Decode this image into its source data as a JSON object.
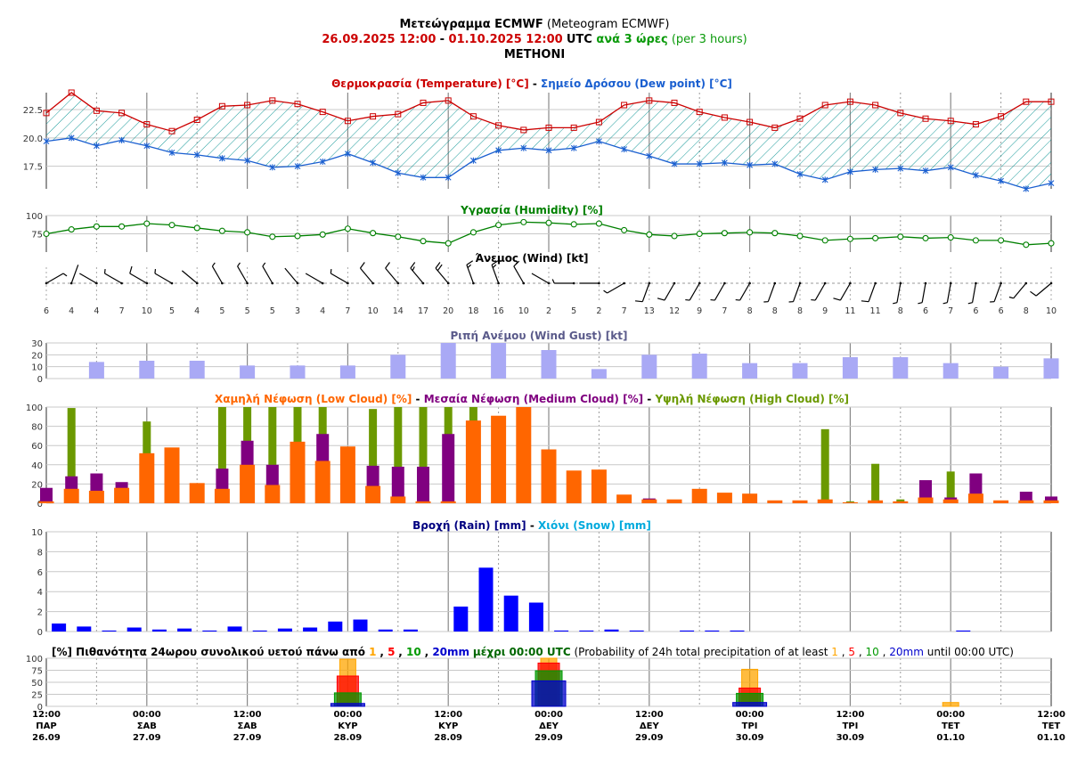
{
  "header": {
    "title_gr": "Μετεώγραμμα ECMWF",
    "title_en": "(Meteogram ECMWF)",
    "range_start": "26.09.2025 12:00",
    "range_sep": " - ",
    "range_end": "01.10.2025 12:00",
    "utc": " UTC ",
    "per_gr": "ανά 3 ώρες",
    "per_en": " (per 3 hours)",
    "location": "METHONI"
  },
  "colors": {
    "temp": "#cc0000",
    "dew": "#1a5fd0",
    "humidity": "#008000",
    "gust": "#a9a9f5",
    "low": "#ff6600",
    "medium": "#800080",
    "high": "#6b9900",
    "rain": "#0000ff",
    "rain_title": "#000080",
    "snow": "#00aadd",
    "prob1": "#ffa500",
    "prob5": "#ff0000",
    "prob10": "#009900",
    "prob20": "#0000cc"
  },
  "time_axis": {
    "labels": [
      {
        "time": "12:00",
        "day": "ΠΑΡ",
        "date": "26.09"
      },
      {
        "time": "00:00",
        "day": "ΣΑΒ",
        "date": "27.09"
      },
      {
        "time": "12:00",
        "day": "ΣΑΒ",
        "date": "27.09"
      },
      {
        "time": "00:00",
        "day": "ΚΥΡ",
        "date": "28.09"
      },
      {
        "time": "12:00",
        "day": "ΚΥΡ",
        "date": "28.09"
      },
      {
        "time": "00:00",
        "day": "ΔΕΥ",
        "date": "29.09"
      },
      {
        "time": "12:00",
        "day": "ΔΕΥ",
        "date": "29.09"
      },
      {
        "time": "00:00",
        "day": "ΤΡΙ",
        "date": "30.09"
      },
      {
        "time": "12:00",
        "day": "ΤΡΙ",
        "date": "30.09"
      },
      {
        "time": "00:00",
        "day": "ΤΕΤ",
        "date": "01.10"
      },
      {
        "time": "12:00",
        "day": "ΤΕΤ",
        "date": "01.10"
      }
    ]
  },
  "chart_data": [
    {
      "type": "line",
      "title_parts": [
        "Θερμοκρασία (Temperature) [°C]",
        " - ",
        "Σημείο Δρόσου (Dew point) [°C]"
      ],
      "y_ticks": [
        "22.5",
        "20.0",
        "17.5"
      ],
      "ylim": [
        15.5,
        24.0
      ],
      "series": [
        {
          "name": "Θερμοκρασία (Temperature) [°C]",
          "values": [
            22.2,
            24.0,
            22.4,
            22.2,
            21.2,
            20.6,
            21.6,
            22.8,
            22.9,
            23.3,
            23.0,
            22.3,
            21.5,
            21.9,
            22.1,
            23.1,
            23.3,
            21.9,
            21.1,
            20.7,
            20.9,
            20.9,
            21.4,
            22.9,
            23.3,
            23.1,
            22.3,
            21.8,
            21.4,
            20.9,
            21.7,
            22.9,
            23.2,
            22.9,
            22.2,
            21.7,
            21.5,
            21.2,
            21.9,
            23.2,
            23.2
          ]
        },
        {
          "name": "Σημείο Δρόσου (Dew point) [°C]",
          "values": [
            19.7,
            20.0,
            19.3,
            19.8,
            19.3,
            18.7,
            18.5,
            18.2,
            18.0,
            17.4,
            17.5,
            17.9,
            18.6,
            17.8,
            16.9,
            16.5,
            16.5,
            18.0,
            18.9,
            19.1,
            18.9,
            19.1,
            19.7,
            19.0,
            18.4,
            17.7,
            17.7,
            17.8,
            17.6,
            17.7,
            16.8,
            16.3,
            17.0,
            17.2,
            17.3,
            17.1,
            17.4,
            16.7,
            16.2,
            15.5,
            16.0
          ]
        }
      ]
    },
    {
      "type": "line",
      "title": "Υγρασία (Humidity) [%]",
      "y_ticks": [
        "100",
        "75"
      ],
      "ylim": [
        50,
        100
      ],
      "series": [
        {
          "name": "Υγρασία (Humidity) [%]",
          "values": [
            75,
            81,
            85,
            85,
            89,
            87,
            83,
            79,
            77,
            71,
            72,
            74,
            82,
            76,
            71,
            65,
            62,
            77,
            87,
            91,
            90,
            88,
            89,
            80,
            74,
            72,
            75,
            76,
            77,
            76,
            72,
            66,
            68,
            69,
            71,
            69,
            70,
            66,
            66,
            60,
            62
          ]
        }
      ]
    },
    {
      "type": "scatter",
      "title": "Άνεμος (Wind) [kt]",
      "speeds": [
        6,
        4,
        4,
        7,
        10,
        5,
        4,
        5,
        5,
        5,
        3,
        4,
        7,
        10,
        14,
        17,
        20,
        18,
        16,
        10,
        2,
        5,
        2,
        7,
        13,
        12,
        9,
        7,
        8,
        8,
        8,
        9,
        11,
        11,
        8,
        6,
        7,
        6,
        6,
        8,
        10
      ],
      "directions_deg": [
        60,
        20,
        300,
        300,
        300,
        300,
        310,
        330,
        330,
        330,
        320,
        300,
        300,
        320,
        320,
        320,
        320,
        340,
        340,
        330,
        300,
        270,
        270,
        240,
        200,
        210,
        210,
        210,
        210,
        200,
        200,
        210,
        210,
        200,
        190,
        190,
        190,
        190,
        200,
        220,
        230
      ]
    },
    {
      "type": "bar",
      "title": "Ριπή Ανέμου (Wind Gust) [kt]",
      "y_ticks": [
        "30",
        "20",
        "10",
        "0"
      ],
      "ylim": [
        0,
        30
      ],
      "series": [
        {
          "name": "Ριπή Ανέμου (Wind Gust) [kt]",
          "values": [
            14,
            15,
            15,
            11,
            11,
            11,
            20,
            30,
            30,
            24,
            8,
            20,
            21,
            13,
            13,
            18,
            18,
            13,
            10,
            17
          ]
        }
      ]
    },
    {
      "type": "bar",
      "title_parts": [
        "Χαμηλή Νέφωση (Low Cloud) [%]",
        " - ",
        "Μεσαία Νέφωση (Medium Cloud) [%]",
        " - ",
        "Υψηλή Νέφωση (High Cloud) [%]"
      ],
      "y_ticks": [
        "100",
        "80",
        "60",
        "40",
        "20",
        "0"
      ],
      "ylim": [
        0,
        100
      ],
      "series": [
        {
          "name": "Χαμηλή Νέφωση (Low Cloud) [%]",
          "values": [
            2,
            15,
            13,
            16,
            52,
            58,
            21,
            15,
            40,
            19,
            64,
            44,
            59,
            18,
            7,
            2,
            2,
            86,
            91,
            100,
            56,
            34,
            35,
            9,
            4,
            4,
            15,
            11,
            10,
            3,
            3,
            4,
            1,
            3,
            2,
            6,
            4,
            10,
            3,
            3,
            3
          ]
        },
        {
          "name": "Μεσαία Νέφωση (Medium Cloud) [%]",
          "values": [
            16,
            28,
            31,
            22,
            0,
            0,
            0,
            36,
            65,
            40,
            0,
            72,
            0,
            39,
            38,
            38,
            72,
            0,
            0,
            0,
            0,
            0,
            0,
            0,
            5,
            0,
            0,
            0,
            0,
            0,
            0,
            0,
            0,
            0,
            0,
            24,
            6,
            31,
            0,
            12,
            7
          ]
        },
        {
          "name": "Υψηλή Νέφωση (High Cloud) [%]",
          "values": [
            0,
            99,
            0,
            0,
            85,
            0,
            0,
            100,
            100,
            100,
            100,
            100,
            0,
            98,
            100,
            100,
            100,
            100,
            0,
            0,
            0,
            0,
            0,
            0,
            0,
            0,
            0,
            0,
            0,
            0,
            0,
            77,
            2,
            41,
            4,
            0,
            33,
            0,
            0,
            0,
            0
          ]
        }
      ]
    },
    {
      "type": "bar",
      "title_parts": [
        "Βροχή (Rain) [mm]",
        " - ",
        "Χιόνι (Snow) [mm]"
      ],
      "y_ticks": [
        "10",
        "8",
        "6",
        "4",
        "2",
        "0"
      ],
      "ylim": [
        0,
        10
      ],
      "series": [
        {
          "name": "Βροχή (Rain) [mm]",
          "values": [
            0.8,
            0.5,
            0.1,
            0.4,
            0.2,
            0.3,
            0.1,
            0.5,
            0.1,
            0.3,
            0.4,
            1.0,
            1.2,
            0.2,
            0.2,
            0,
            2.5,
            6.4,
            3.6,
            2.9,
            0.1,
            0.1,
            0.2,
            0.1,
            0,
            0.1,
            0.1,
            0.1,
            0,
            0,
            0,
            0,
            0,
            0,
            0,
            0,
            0.1,
            0,
            0,
            0
          ]
        },
        {
          "name": "Χιόνι (Snow) [mm]",
          "values": []
        }
      ]
    },
    {
      "type": "bar",
      "title_parts": [
        "[%] Πιθανότητα 24ωρου συνολικού υετού πάνω από ",
        "1",
        ", ",
        "5",
        ", ",
        "10",
        ", ",
        "20mm",
        " μέχρι 00:00 UTC",
        " (Probability of 24h total precipitation of at least ",
        "1",
        ", ",
        "5",
        ", ",
        "10",
        ", ",
        "20mm",
        " until 00:00 UTC)"
      ],
      "y_ticks": [
        "100",
        "75",
        "50",
        "25",
        "0"
      ],
      "ylim": [
        0,
        100
      ],
      "categories": [
        "28.09 00:00",
        "29.09 00:00",
        "30.09 00:00",
        "01.10 00:00"
      ],
      "series": [
        {
          "name": "1",
          "values": [
            98,
            100,
            77,
            8
          ]
        },
        {
          "name": "5",
          "values": [
            63,
            90,
            38,
            0
          ]
        },
        {
          "name": "10",
          "values": [
            28,
            74,
            27,
            0
          ]
        },
        {
          "name": "20mm",
          "values": [
            6,
            53,
            8,
            0
          ]
        }
      ]
    }
  ]
}
